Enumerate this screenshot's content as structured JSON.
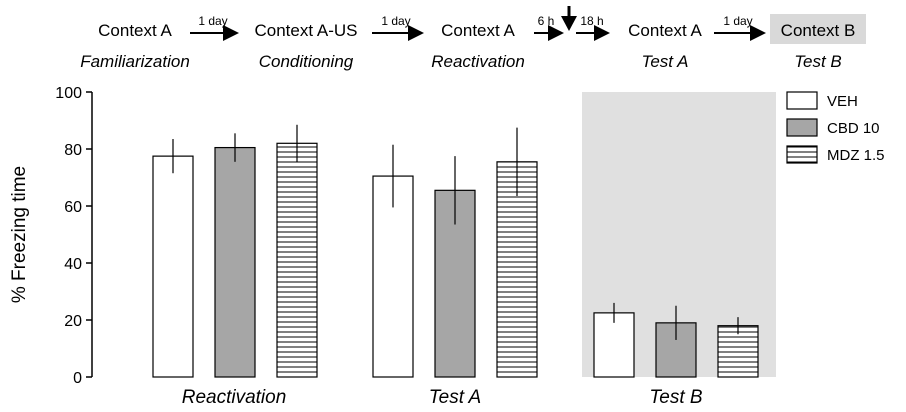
{
  "timeline": {
    "steps": [
      {
        "context": "Context A",
        "phase": "Familiarization"
      },
      {
        "context": "Context A-US",
        "phase": "Conditioning"
      },
      {
        "context": "Context A",
        "phase": "Reactivation"
      },
      {
        "context": "Context A",
        "phase": "Test A"
      },
      {
        "context": "Context B",
        "phase": "Test B",
        "highlight": true
      }
    ],
    "intervals": [
      "1 day",
      "1 day",
      "6 h",
      "1 day"
    ],
    "intervals_after_marker": "18 h"
  },
  "chart_data": {
    "type": "bar",
    "title": "",
    "xlabel": "",
    "ylabel": "% Freezing time",
    "ylim": [
      0,
      100
    ],
    "yticks": [
      0,
      20,
      40,
      60,
      80,
      100
    ],
    "categories": [
      "Reactivation",
      "Test A",
      "Test B"
    ],
    "series": [
      {
        "name": "VEH",
        "fill": "white",
        "values": [
          77.5,
          70.5,
          22.5
        ],
        "errors": [
          6,
          11,
          3.5
        ]
      },
      {
        "name": "CBD 10",
        "fill": "gray",
        "values": [
          80.5,
          65.5,
          19
        ],
        "errors": [
          5,
          12,
          6
        ]
      },
      {
        "name": "MDZ 1.5",
        "fill": "hatched",
        "values": [
          82,
          75.5,
          18
        ],
        "errors": [
          6.5,
          12,
          3
        ]
      }
    ],
    "shaded_group": "Test B",
    "colors": {
      "gray_bar": "#a6a6a6",
      "shade": "#e0e0e0",
      "outline": "#000000"
    }
  }
}
